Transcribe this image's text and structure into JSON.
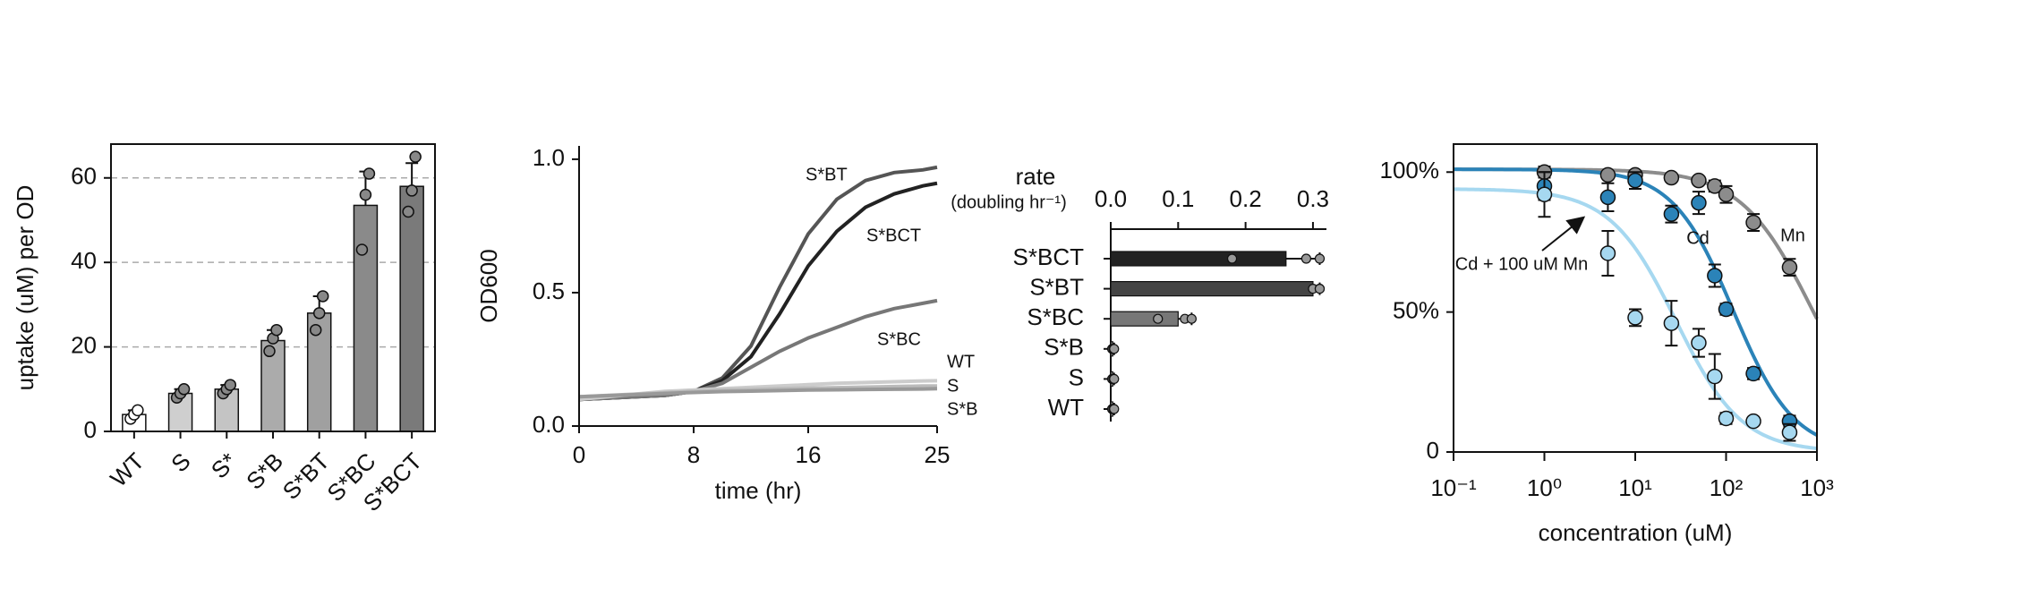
{
  "chart_data": [
    {
      "type": "bar",
      "ylabel": "uptake (uM) per OD",
      "categories": [
        "WT",
        "S",
        "S*",
        "S*B",
        "S*BT",
        "S*BC",
        "S*BCT"
      ],
      "values": [
        4,
        9,
        10,
        21.5,
        28,
        53.5,
        58
      ],
      "errors": [
        1,
        1,
        1,
        2.5,
        4,
        8,
        5.5
      ],
      "points": [
        [
          3,
          4,
          5
        ],
        [
          8,
          9,
          10
        ],
        [
          9,
          10,
          11
        ],
        [
          19,
          22,
          24
        ],
        [
          24,
          28,
          32
        ],
        [
          43,
          56,
          61
        ],
        [
          52,
          57,
          65
        ]
      ],
      "colors": [
        "#ffffff",
        "#cfcfcf",
        "#c4c4c4",
        "#ababab",
        "#a0a0a0",
        "#8a8a8a",
        "#7a7a7a"
      ],
      "ylim": [
        0,
        68
      ],
      "yticks": [
        0,
        20,
        40,
        60
      ],
      "grid": true
    },
    {
      "type": "line",
      "xlabel": "time (hr)",
      "ylabel": "OD600",
      "x": [
        0,
        2,
        4,
        6,
        8,
        10,
        12,
        14,
        16,
        18,
        20,
        22,
        24,
        25
      ],
      "series": [
        {
          "name": "S*BT",
          "color": "#555555",
          "values": [
            0.1,
            0.105,
            0.11,
            0.115,
            0.13,
            0.18,
            0.3,
            0.52,
            0.72,
            0.85,
            0.92,
            0.95,
            0.96,
            0.97
          ]
        },
        {
          "name": "S*BCT",
          "color": "#222222",
          "values": [
            0.1,
            0.105,
            0.11,
            0.115,
            0.13,
            0.17,
            0.26,
            0.42,
            0.6,
            0.73,
            0.82,
            0.87,
            0.9,
            0.91
          ]
        },
        {
          "name": "S*BC",
          "color": "#777777",
          "values": [
            0.1,
            0.105,
            0.11,
            0.115,
            0.13,
            0.16,
            0.22,
            0.28,
            0.33,
            0.37,
            0.41,
            0.44,
            0.46,
            0.47
          ]
        },
        {
          "name": "WT",
          "color": "#cccccc",
          "values": [
            0.1,
            0.11,
            0.12,
            0.13,
            0.135,
            0.14,
            0.145,
            0.15,
            0.155,
            0.16,
            0.163,
            0.166,
            0.169,
            0.17
          ]
        },
        {
          "name": "S",
          "color": "#bbbbbb",
          "values": [
            0.11,
            0.115,
            0.12,
            0.125,
            0.13,
            0.134,
            0.137,
            0.14,
            0.142,
            0.144,
            0.146,
            0.148,
            0.15,
            0.15
          ]
        },
        {
          "name": "S*B",
          "color": "#999999",
          "values": [
            0.11,
            0.114,
            0.118,
            0.122,
            0.126,
            0.129,
            0.131,
            0.133,
            0.135,
            0.136,
            0.137,
            0.138,
            0.139,
            0.14
          ]
        }
      ],
      "xlim": [
        0,
        25
      ],
      "xticks": [
        0,
        8,
        16,
        25
      ],
      "ylim": [
        0,
        1.05
      ],
      "yticks": [
        {
          "value": 0,
          "label": "0.0"
        },
        0.5,
        {
          "value": 1,
          "label": "1.0"
        }
      ]
    },
    {
      "type": "hbar",
      "title": "rate",
      "subtitle": "(doubling hr⁻¹)",
      "categories": [
        "S*BCT",
        "S*BT",
        "S*BC",
        "S*B",
        "S",
        "WT"
      ],
      "values": [
        0.26,
        0.3,
        0.1,
        0.003,
        0.003,
        0.003
      ],
      "errors": [
        0.05,
        0.01,
        0.02,
        0.002,
        0.002,
        0.002
      ],
      "points": [
        [
          0.18,
          0.29,
          0.31
        ],
        [
          0.3,
          0.31,
          0.31
        ],
        [
          0.07,
          0.11,
          0.12
        ],
        [
          0.002,
          0.004,
          0.005
        ],
        [
          0.002,
          0.004,
          0.005
        ],
        [
          0.002,
          0.004,
          0.005
        ]
      ],
      "colors": [
        "#222222",
        "#444444",
        "#777777",
        "#999999",
        "#aaaaaa",
        "#bbbbbb"
      ],
      "xlim": [
        0,
        0.32
      ],
      "xticks": [
        {
          "value": 0,
          "label": "0.0"
        },
        0.1,
        0.2,
        0.3
      ]
    },
    {
      "type": "scatter",
      "xlabel": "concentration (uM)",
      "log_x": true,
      "x": [
        1,
        5,
        10,
        25,
        50,
        75,
        100,
        200,
        500
      ],
      "series": [
        {
          "name": "Mn",
          "color": "#8c8c8c",
          "values": [
            100,
            99,
            99,
            98,
            97,
            95,
            92,
            82,
            66
          ],
          "errors": [
            2,
            1,
            1,
            1,
            1,
            2,
            3,
            3,
            3
          ],
          "fit": {
            "top": 101,
            "ic50": 900,
            "hill": 1.1
          }
        },
        {
          "name": "Cd",
          "color": "#2b83b8",
          "values": [
            95,
            91,
            97,
            85,
            89,
            63,
            51,
            28,
            11
          ],
          "errors": [
            5,
            5,
            3,
            3,
            4,
            4,
            2,
            2,
            2
          ],
          "fit": {
            "top": 101,
            "ic50": 120,
            "hill": 1.3
          }
        },
        {
          "name": "Cd + 100 uM Mn",
          "color": "#a6d8f0",
          "values": [
            92,
            71,
            48,
            46,
            39,
            27,
            12,
            11,
            7
          ],
          "errors": [
            8,
            8,
            3,
            8,
            5,
            8,
            2,
            1,
            3
          ],
          "fit": {
            "top": 94,
            "ic50": 28,
            "hill": 1.2
          }
        }
      ],
      "xlim": [
        0.1,
        1000
      ],
      "xticks": [
        {
          "value": 0.1,
          "label": "10⁻¹"
        },
        {
          "value": 1,
          "label": "10⁰"
        },
        {
          "value": 10,
          "label": "10¹"
        },
        {
          "value": 100,
          "label": "10²"
        },
        {
          "value": 1000,
          "label": "10³"
        }
      ],
      "ylim": [
        0,
        110
      ],
      "yticks": [
        0,
        {
          "value": 50,
          "label": "50%"
        },
        {
          "value": 100,
          "label": "100%"
        }
      ]
    }
  ]
}
